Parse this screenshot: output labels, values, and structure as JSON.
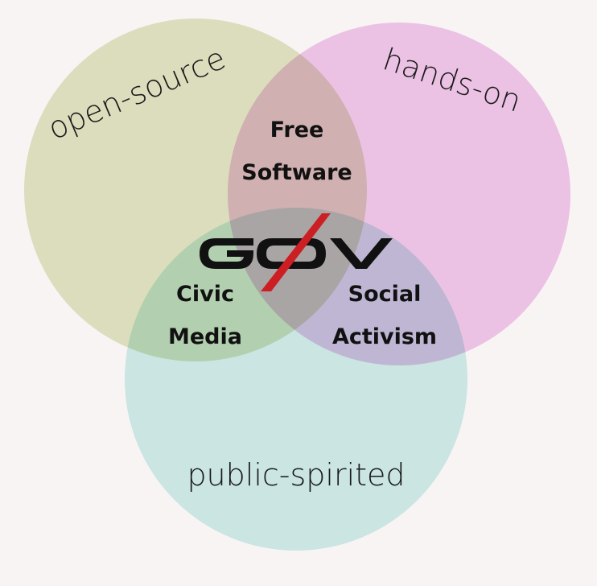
{
  "diagram": {
    "type": "venn-3",
    "sets": {
      "top_left": {
        "label": "open-source",
        "color": "#e2e7c6"
      },
      "top_right": {
        "label": "hands-on",
        "color": "#f2cbef"
      },
      "bottom": {
        "label": "public-spirited",
        "color": "#d0f0ed"
      }
    },
    "intersections": {
      "top_left_top_right": {
        "line1": "Free",
        "line2": "Software"
      },
      "top_left_bottom": {
        "line1": "Civic",
        "line2": "Media"
      },
      "top_right_bottom": {
        "line1": "Social",
        "line2": "Activism"
      }
    },
    "logo": {
      "text": "GØV",
      "slash_color": "#cc1f24",
      "text_color": "#111111"
    },
    "background": "#f8f4f4"
  }
}
